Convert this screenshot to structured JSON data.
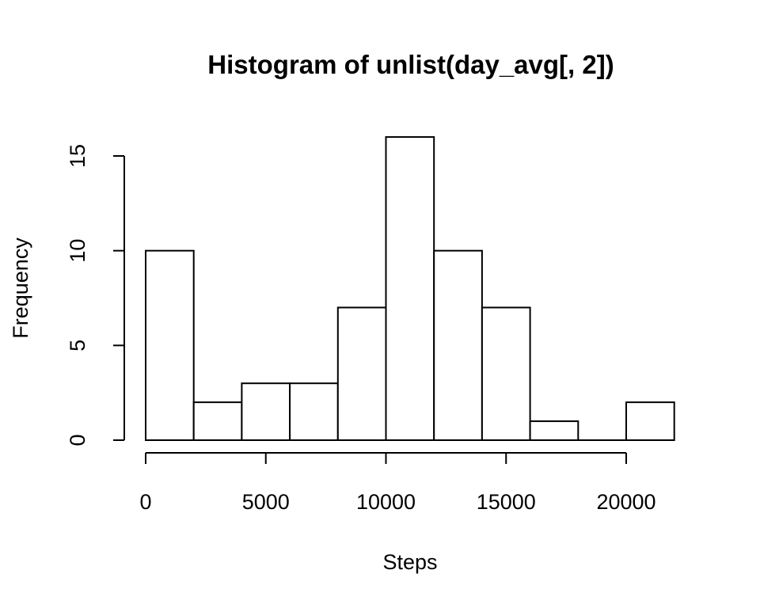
{
  "chart_data": {
    "type": "bar",
    "title": "Histogram of unlist(day_avg[, 2])",
    "xlabel": "Steps",
    "ylabel": "Frequency",
    "bins": [
      {
        "x0": 0,
        "x1": 2000,
        "count": 10
      },
      {
        "x0": 2000,
        "x1": 4000,
        "count": 2
      },
      {
        "x0": 4000,
        "x1": 6000,
        "count": 3
      },
      {
        "x0": 6000,
        "x1": 8000,
        "count": 3
      },
      {
        "x0": 8000,
        "x1": 10000,
        "count": 7
      },
      {
        "x0": 10000,
        "x1": 12000,
        "count": 16
      },
      {
        "x0": 12000,
        "x1": 14000,
        "count": 10
      },
      {
        "x0": 14000,
        "x1": 16000,
        "count": 7
      },
      {
        "x0": 16000,
        "x1": 18000,
        "count": 1
      },
      {
        "x0": 18000,
        "x1": 20000,
        "count": 0
      },
      {
        "x0": 20000,
        "x1": 22000,
        "count": 2
      }
    ],
    "xlim": [
      0,
      22000
    ],
    "ylim": [
      0,
      16
    ],
    "x_ticks": [
      0,
      5000,
      10000,
      15000,
      20000
    ],
    "y_ticks": [
      0,
      5,
      10,
      15
    ],
    "grid": false,
    "legend": "none",
    "bar_fill": "#ffffff",
    "bar_stroke": "#000000"
  }
}
